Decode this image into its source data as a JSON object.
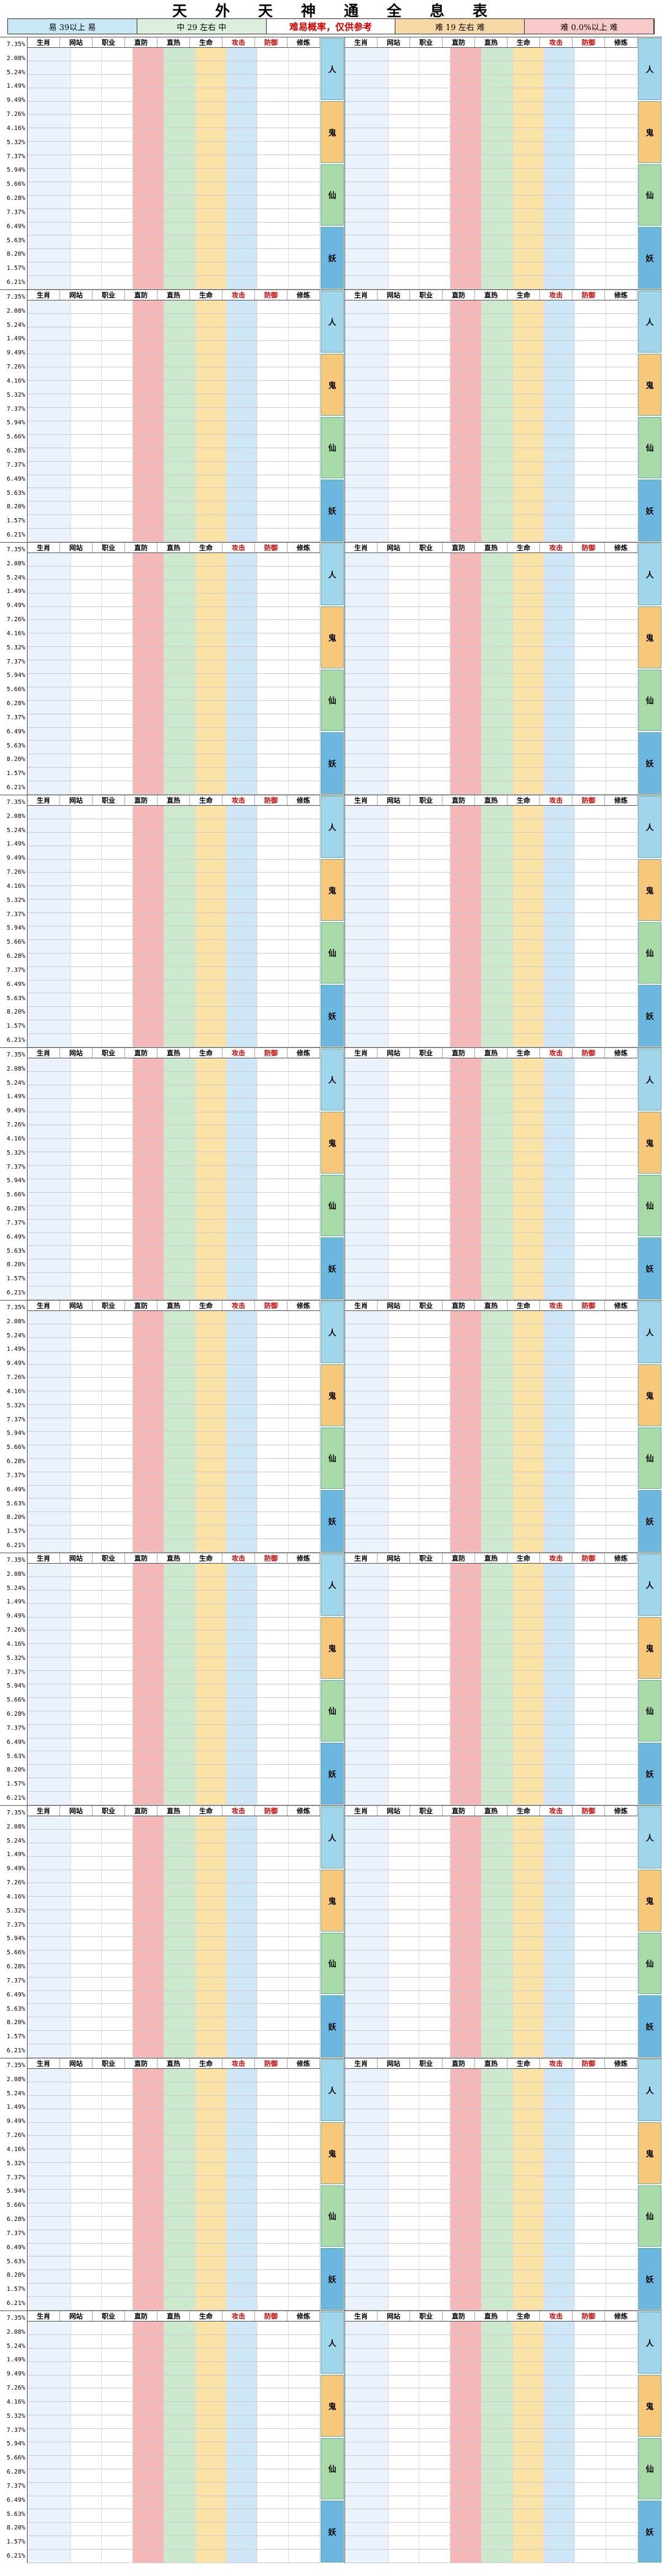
{
  "title": {
    "chars": [
      "天",
      "外",
      "天",
      "神",
      "通",
      "全",
      "息",
      "表"
    ]
  },
  "legend": {
    "l1": "易 39以上 易",
    "l2": "中 29 左右 中",
    "l3": "难易概率，仅供参考",
    "l4": "难 19 左右 难",
    "l5": "难 0.0%以上 难"
  },
  "header": {
    "h1": "生肖",
    "h2": "网站",
    "h3": "职业",
    "h4": "直防",
    "h5": "直热",
    "h6": "生命",
    "h7": "攻击",
    "h8": "防御",
    "h9": "修炼"
  },
  "side": {
    "a": "人",
    "b": "鬼",
    "c": "仙",
    "d": "妖"
  },
  "pct": [
    "7.35%",
    "2.08%",
    "5.24%",
    "1.49%",
    "9.49%",
    "7.26%",
    "4.16%",
    "5.32%",
    "7.37%",
    "5.94%",
    "5.66%",
    "6.28%",
    "7.37%",
    "6.49%",
    "5.63%",
    "8.20%",
    "1.57%",
    "6.21%"
  ]
}
